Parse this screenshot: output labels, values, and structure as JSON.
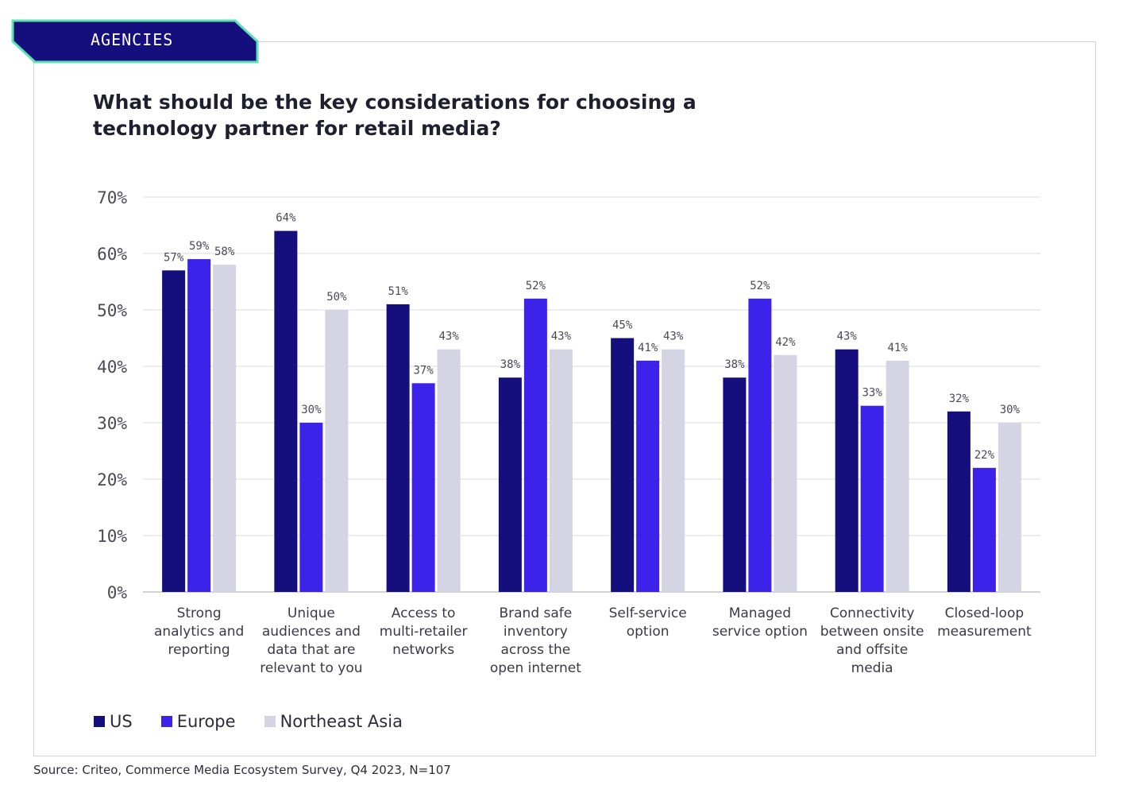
{
  "tag": {
    "label": "AGENCIES"
  },
  "colors": {
    "us": "#140f7c",
    "europe": "#3d23ea",
    "northeast_asia": "#d4d4e2",
    "tag_bg": "#140f7c",
    "tag_border": "#5ce0b4"
  },
  "chart_data": {
    "type": "bar",
    "title": "What should be the key considerations for choosing a technology partner for retail media?",
    "xlabel": "",
    "ylabel": "",
    "ylim": [
      0,
      70
    ],
    "yticks": [
      "0%",
      "10%",
      "20%",
      "30%",
      "40%",
      "50%",
      "60%",
      "70%"
    ],
    "categories": [
      [
        "Strong",
        "analytics and",
        "reporting"
      ],
      [
        "Unique",
        "audiences and",
        "data that are",
        "relevant to you"
      ],
      [
        "Access to",
        "multi-retailer",
        "networks"
      ],
      [
        "Brand safe",
        "inventory",
        "across the",
        "open internet"
      ],
      [
        "Self-service",
        "option"
      ],
      [
        "Managed",
        "service option"
      ],
      [
        "Connectivity",
        "between onsite",
        "and offsite",
        "media"
      ],
      [
        "Closed-loop",
        "measurement"
      ]
    ],
    "series": [
      {
        "name": "US",
        "values": [
          57,
          64,
          51,
          38,
          45,
          38,
          43,
          32
        ]
      },
      {
        "name": "Europe",
        "values": [
          59,
          30,
          37,
          52,
          41,
          52,
          33,
          22
        ]
      },
      {
        "name": "Northeast Asia",
        "values": [
          58,
          50,
          43,
          43,
          43,
          42,
          41,
          30
        ]
      }
    ],
    "legend": [
      "US",
      "Europe",
      "Northeast Asia"
    ],
    "legend_position": "bottom-left"
  },
  "source": "Source: Criteo, Commerce Media Ecosystem Survey, Q4 2023, N=107"
}
